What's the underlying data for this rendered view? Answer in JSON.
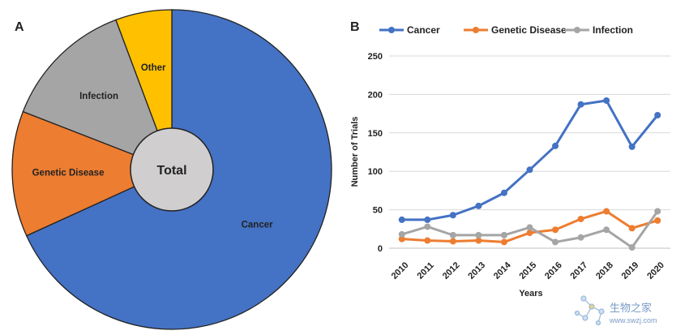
{
  "chart_data": [
    {
      "panel": "A",
      "type": "pie",
      "center_label": "Total",
      "slices": [
        {
          "label": "Cancer",
          "value": 68.2,
          "color": "#4472C4"
        },
        {
          "label": "Genetic Disease",
          "value": 12.7,
          "color": "#ED7D31"
        },
        {
          "label": "Infection",
          "value": 13.4,
          "color": "#A5A5A5"
        },
        {
          "label": "Other",
          "value": 5.7,
          "color": "#FFC000"
        }
      ]
    },
    {
      "panel": "B",
      "type": "line",
      "xlabel": "Years",
      "ylabel": "Number of Trials",
      "ylim": [
        0,
        250
      ],
      "yticks": [
        0,
        50,
        100,
        150,
        200,
        250
      ],
      "grid": true,
      "legend": "top",
      "categories": [
        "2010",
        "2011",
        "2012",
        "2013",
        "2014",
        "2015",
        "2016",
        "2017",
        "2018",
        "2019",
        "2020"
      ],
      "series": [
        {
          "name": "Cancer",
          "color": "#4472C4",
          "values": [
            37,
            37,
            43,
            55,
            72,
            102,
            133,
            187,
            192,
            132,
            173
          ]
        },
        {
          "name": "Genetic Disease",
          "color": "#ED7D31",
          "values": [
            12,
            10,
            9,
            10,
            8,
            20,
            24,
            38,
            48,
            26,
            36
          ]
        },
        {
          "name": "Infection",
          "color": "#A5A5A5",
          "values": [
            18,
            28,
            17,
            17,
            17,
            27,
            8,
            14,
            24,
            1,
            48
          ]
        }
      ]
    }
  ],
  "watermark": {
    "text": "生物之家",
    "url": "www.swzj.com"
  }
}
